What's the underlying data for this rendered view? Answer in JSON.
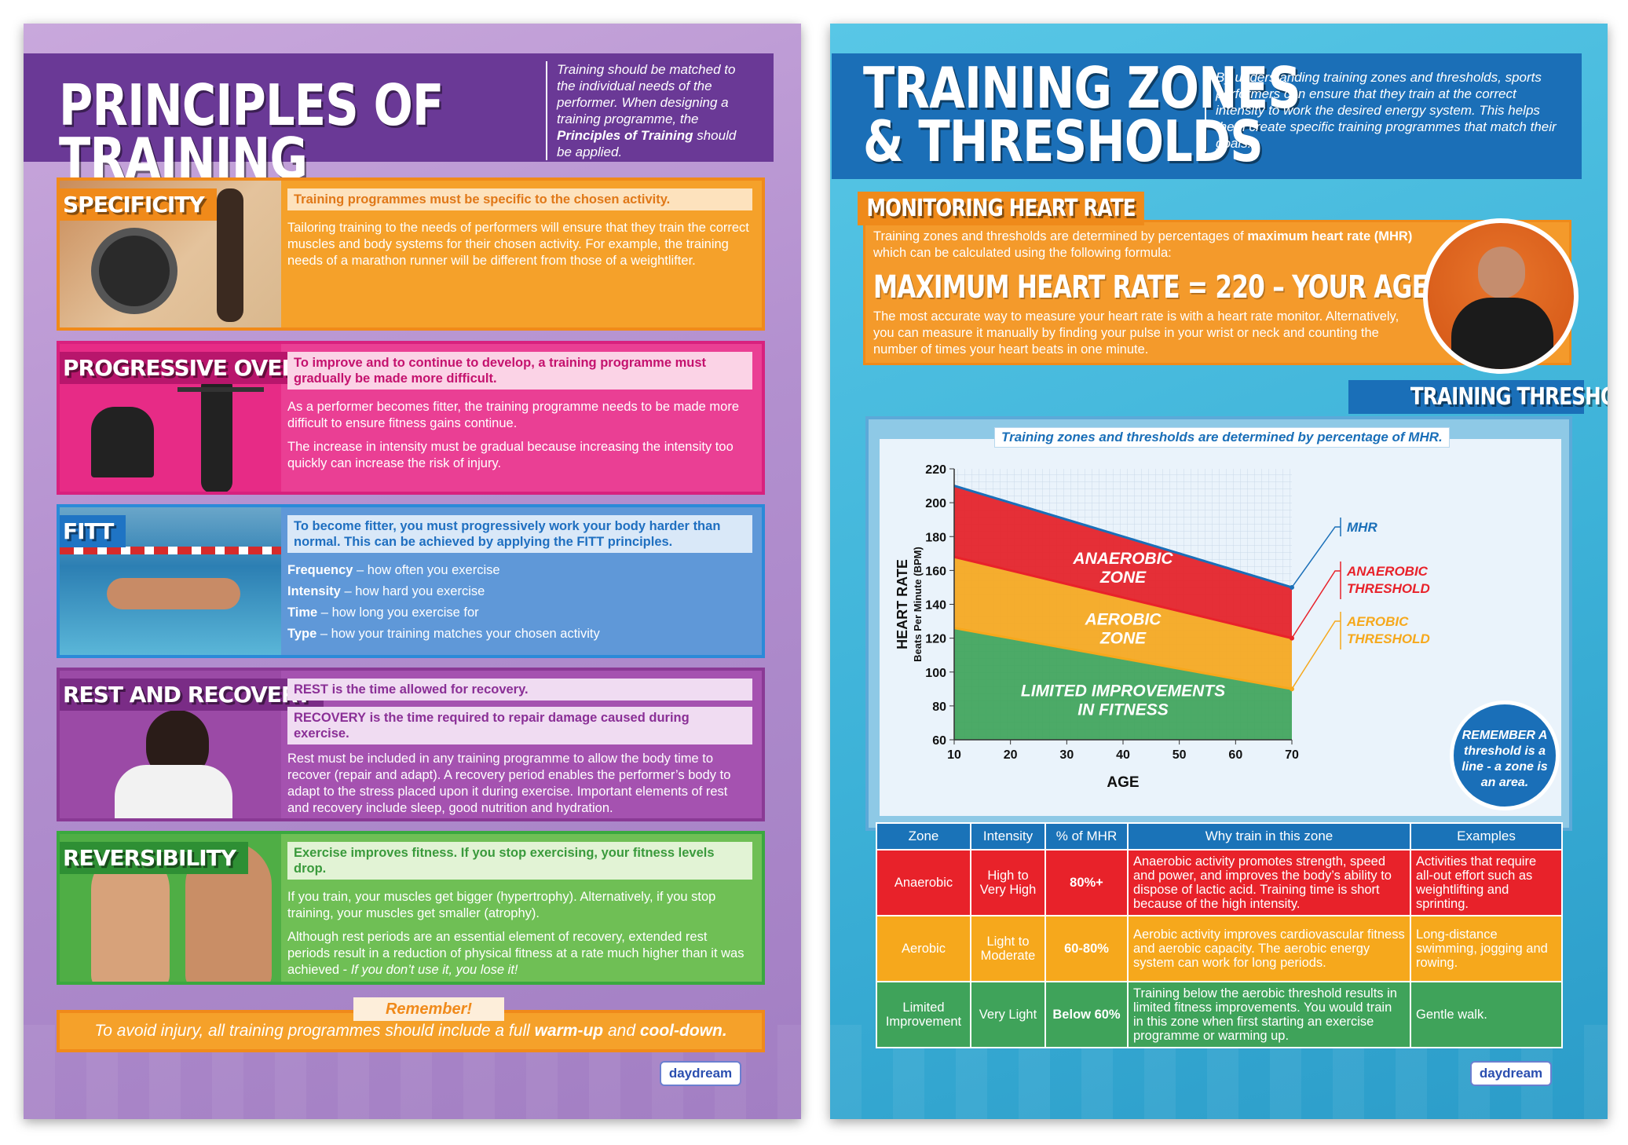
{
  "left_poster": {
    "title": "PRINCIPLES OF TRAINING",
    "intro_1": "Training should be matched to the individual needs of the performer. When designing a training programme, the ",
    "intro_bold": "Principles of Training",
    "intro_2": " should be applied.",
    "specificity": {
      "label": "SPECIFICITY",
      "highlight": "Training programmes must be specific to the chosen activity.",
      "body": "Tailoring training to the needs of performers will ensure that they train the correct muscles and body systems for their chosen activity. For example, the training needs of a marathon runner will be different from those of a weightlifter."
    },
    "overload": {
      "label": "PROGRESSIVE OVERLOAD",
      "highlight": "To improve and to continue to develop, a training programme must gradually be made more difficult.",
      "body_1": "As a performer becomes fitter, the training programme needs to be made more difficult to ensure fitness gains continue.",
      "body_2": "The increase in intensity must be gradual because increasing the intensity too quickly can increase the risk of injury."
    },
    "fitt": {
      "label": "FITT",
      "highlight": "To become fitter, you must progressively work your body harder than normal. This can be achieved by applying the FITT principles.",
      "items": [
        {
          "term": "Frequency",
          "desc": " – how often you exercise"
        },
        {
          "term": "Intensity",
          "desc": " – how hard you exercise"
        },
        {
          "term": "Time",
          "desc": " – how long you exercise for"
        },
        {
          "term": "Type",
          "desc": " – how your training matches your chosen activity"
        }
      ]
    },
    "rest": {
      "label": "REST AND RECOVERY",
      "hl1_bold": "REST",
      "hl1_rest": " is the time allowed for recovery.",
      "hl2_bold": "RECOVERY",
      "hl2_rest": " is the time required to repair damage caused during exercise.",
      "body": "Rest must be included in any training programme to allow the body time to recover (repair and adapt). A recovery period enables the performer’s body to adapt to the stress placed upon it during exercise. Important elements of rest and recovery include sleep, good nutrition and hydration."
    },
    "reversibility": {
      "label": "REVERSIBILITY",
      "highlight": "Exercise improves fitness. If you stop exercising, your fitness levels drop.",
      "body_1": "If you train, your muscles get bigger (hypertrophy). Alternatively, if you stop training, your muscles get smaller (atrophy).",
      "body_2a": "Although rest periods are an essential element of recovery, extended rest periods result in a reduction of physical fitness at a rate much higher than it was achieved - ",
      "body_2b": "If you don’t use it, you lose it!"
    },
    "remember_tag": "Remember!",
    "remember_1": "To avoid injury, all training programmes should include a full ",
    "remember_b1": "warm-up",
    "remember_2": " and ",
    "remember_b2": "cool-down.",
    "logo": "daydream"
  },
  "right_poster": {
    "title_line1": "TRAINING ZONES",
    "title_line2": "& THRESHOLDS",
    "intro": "By understanding training zones and thresholds, sports performers can ensure that they train at the correct intensity to work the desired energy system. This helps them create specific training programmes that match their goals.",
    "monitor_label": "MONITORING HEART RATE",
    "monitor_1": "Training zones and thresholds are determined by percentages of ",
    "monitor_b": "maximum heart rate (MHR)",
    "monitor_2": " which can be calculated using the following formula:",
    "formula": "MAXIMUM HEART RATE = 220 – YOUR AGE",
    "monitor_body": "The most accurate way to measure your heart rate is with a heart rate monitor. Alternatively, you can measure it manually by finding your pulse in your wrist or neck and counting the number of times your heart beats in one minute.",
    "thresholds_label": "TRAINING THRESHOLDS",
    "chart_caption": "Training zones and thresholds are determined by percentage of MHR.",
    "remember_badge": "REMEMBER A threshold is a line - a zone is an area.",
    "table": {
      "headers": [
        "Zone",
        "Intensity",
        "% of MHR",
        "Why train in this zone",
        "Examples"
      ],
      "rows": [
        {
          "zone": "Anaerobic",
          "intensity": "High to Very High",
          "pct": "80%+",
          "why": "Anaerobic activity promotes strength, speed and power, and improves the body’s ability to dispose of lactic acid. Training time is short because of the high intensity.",
          "examples": "Activities that require all-out effort such as weightlifting and sprinting.",
          "color": "#e8222a"
        },
        {
          "zone": "Aerobic",
          "intensity": "Light to Moderate",
          "pct": "60-80%",
          "why": "Aerobic activity improves cardiovascular fitness and aerobic capacity. The aerobic energy system can work for long periods.",
          "examples": "Long-distance swimming, jogging and rowing.",
          "color": "#f6a81c"
        },
        {
          "zone": "Limited Improvement",
          "intensity": "Very Light",
          "pct": "Below 60%",
          "why": "Training below the aerobic threshold results in limited fitness improvements. You would train in this zone when first starting an exercise programme or warming up.",
          "examples": "Gentle walk.",
          "color": "#3fa35a"
        }
      ]
    },
    "logo": "daydream"
  },
  "chart_data": {
    "type": "area",
    "title": "",
    "xlabel": "AGE",
    "ylabel": "HEART RATE",
    "ylabel_sub": "Beats Per Minute (BPM)",
    "x": [
      10,
      70
    ],
    "xticks": [
      10,
      20,
      30,
      40,
      50,
      60,
      70
    ],
    "yticks": [
      60,
      80,
      100,
      120,
      140,
      160,
      180,
      200,
      220
    ],
    "xlim": [
      10,
      70
    ],
    "ylim": [
      60,
      220
    ],
    "grid": true,
    "series": [
      {
        "name": "MHR",
        "values": [
          210,
          150
        ],
        "color": "#1a6fb8"
      },
      {
        "name": "ANAEROBIC THRESHOLD",
        "values": [
          168,
          120
        ],
        "color": "#e8222a"
      },
      {
        "name": "AEROBIC THRESHOLD",
        "values": [
          126,
          90
        ],
        "color": "#f6a81c"
      }
    ],
    "zones": [
      {
        "label_1": "ANAEROBIC",
        "label_2": "ZONE",
        "color": "#e41e26"
      },
      {
        "label_1": "AEROBIC",
        "label_2": "ZONE",
        "color": "#f5a71c"
      },
      {
        "label_1": "LIMITED IMPROVEMENTS",
        "label_2": "IN FITNESS",
        "color": "#3ea45a"
      }
    ],
    "legend_labels": {
      "mhr": "MHR",
      "anaerobic_1": "ANAEROBIC",
      "anaerobic_2": "THRESHOLD",
      "aerobic_1": "AEROBIC",
      "aerobic_2": "THRESHOLD"
    }
  }
}
